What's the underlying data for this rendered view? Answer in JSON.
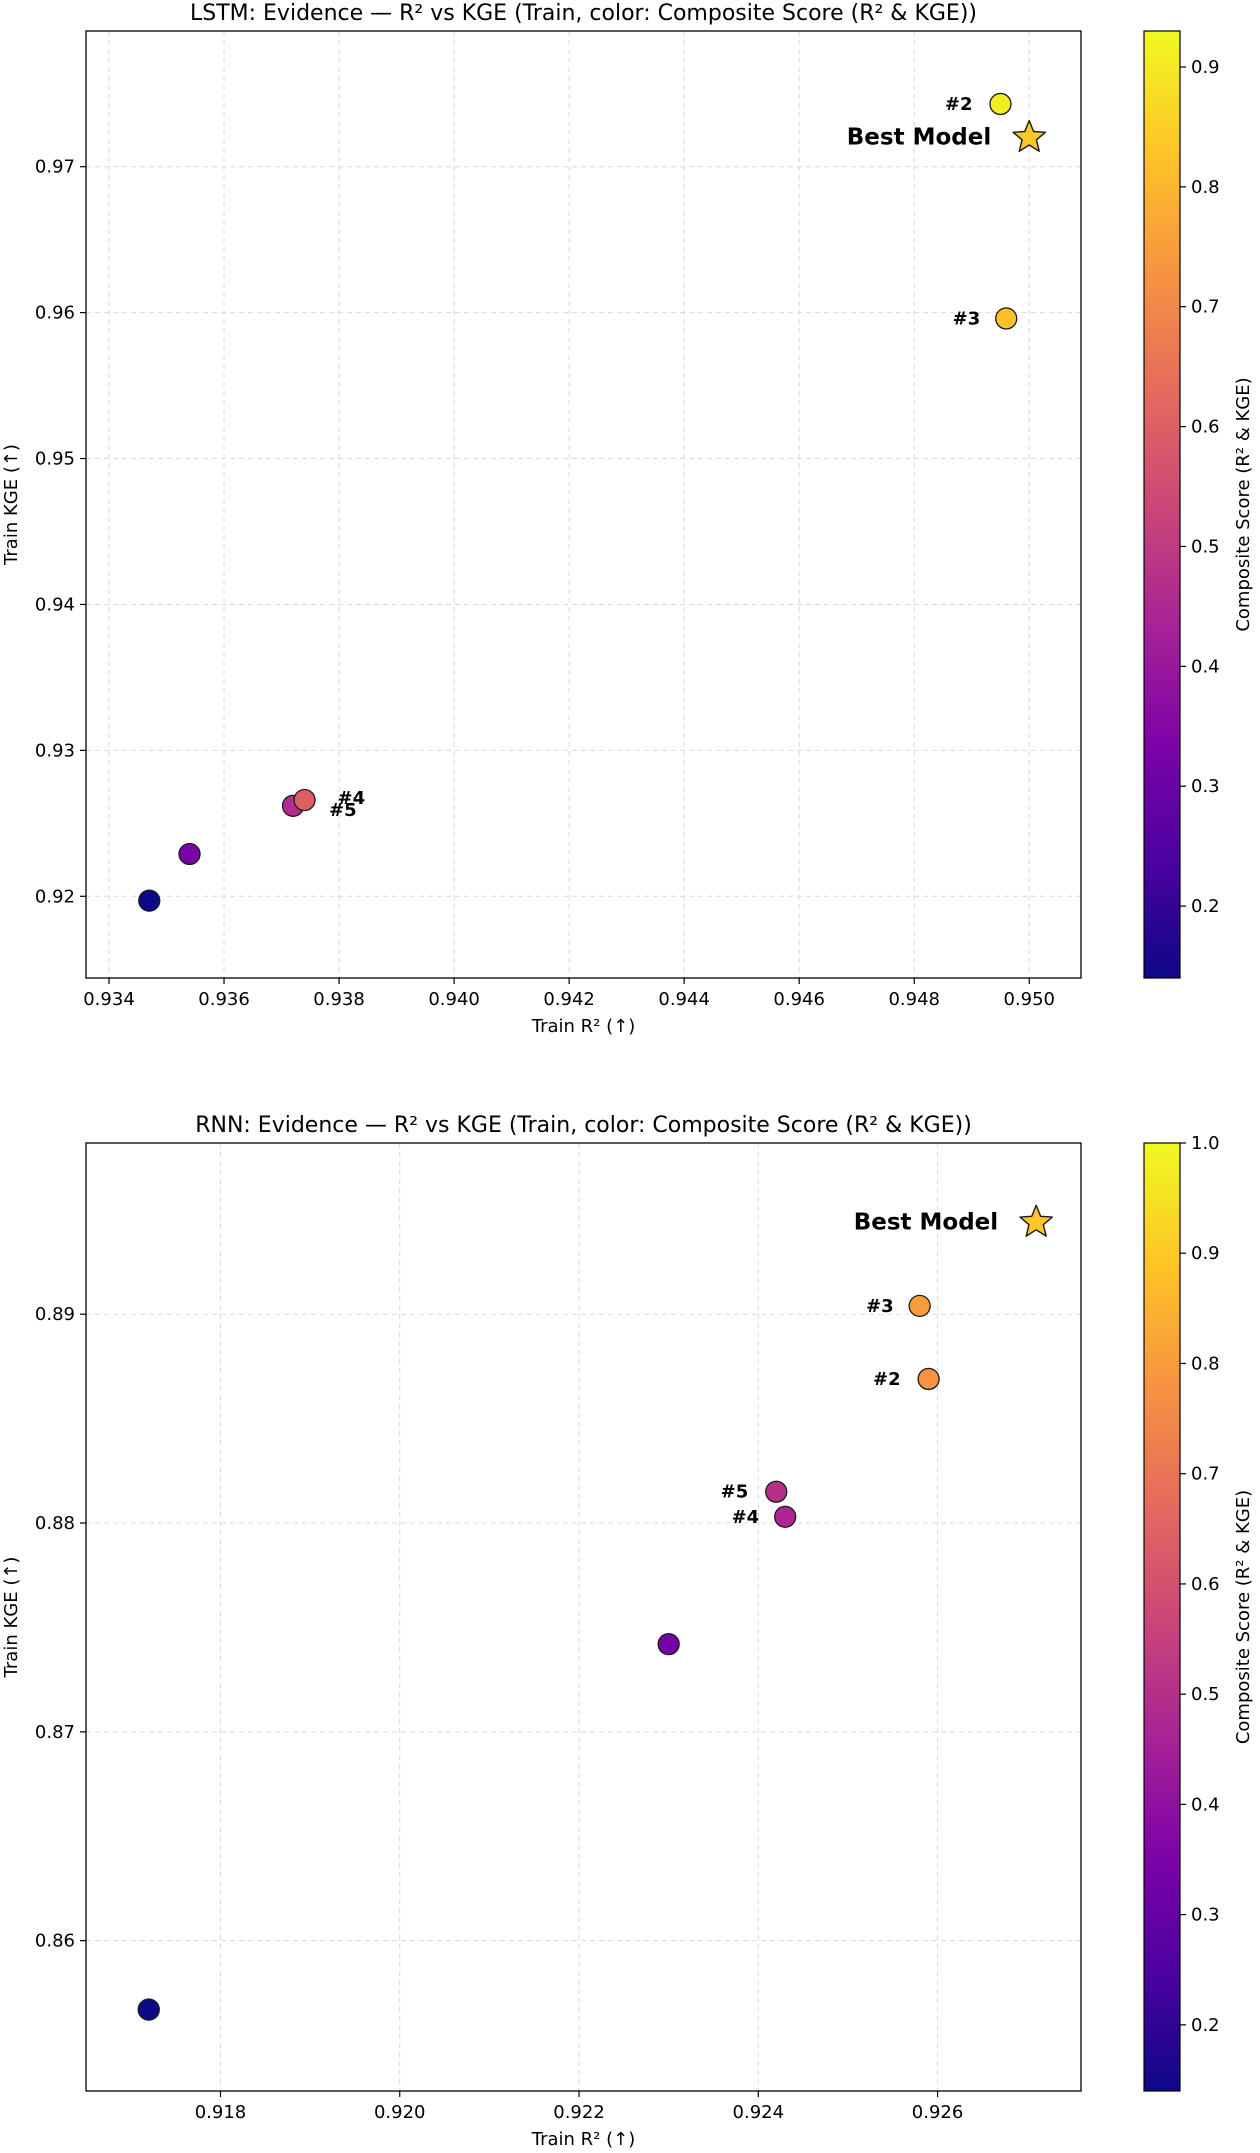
{
  "chart_data": [
    {
      "type": "scatter",
      "title": "LSTM: Evidence — R² vs KGE (Train, color: Composite Score (R² & KGE))",
      "xlabel": "Train R² (↑)",
      "ylabel": "Train KGE (↑)",
      "xlim": [
        0.9336,
        0.9509
      ],
      "ylim": [
        0.9144,
        0.9793
      ],
      "xticks": [
        0.934,
        0.936,
        0.938,
        0.94,
        0.942,
        0.944,
        0.946,
        0.948,
        0.95
      ],
      "xtick_labels": [
        "0.934",
        "0.936",
        "0.938",
        "0.940",
        "0.942",
        "0.944",
        "0.946",
        "0.948",
        "0.950"
      ],
      "yticks": [
        0.92,
        0.93,
        0.94,
        0.95,
        0.96,
        0.97
      ],
      "ytick_labels": [
        "0.92",
        "0.93",
        "0.94",
        "0.95",
        "0.96",
        "0.97"
      ],
      "grid": true,
      "colorbar": {
        "label": "Composite Score (R² & KGE)",
        "colormap": "plasma",
        "range": [
          0.14,
          0.93
        ],
        "ticks": [
          0.2,
          0.3,
          0.4,
          0.5,
          0.6,
          0.7,
          0.8,
          0.9
        ],
        "tick_labels": [
          "0.2",
          "0.3",
          "0.4",
          "0.5",
          "0.6",
          "0.7",
          "0.8",
          "0.9"
        ]
      },
      "points": [
        {
          "x": 0.9347,
          "y": 0.9197,
          "score": 0.14,
          "label": ""
        },
        {
          "x": 0.9354,
          "y": 0.9229,
          "score": 0.33,
          "label": ""
        },
        {
          "x": 0.9372,
          "y": 0.9262,
          "score": 0.46,
          "label": "#5"
        },
        {
          "x": 0.9374,
          "y": 0.9266,
          "score": 0.6,
          "label": "#4"
        },
        {
          "x": 0.9496,
          "y": 0.9596,
          "score": 0.82,
          "label": "#3"
        },
        {
          "x": 0.9495,
          "y": 0.9743,
          "score": 0.91,
          "label": "#2"
        }
      ],
      "best": {
        "x": 0.95,
        "y": 0.972,
        "score": 0.93,
        "label": "Best Model"
      }
    },
    {
      "type": "scatter",
      "title": "RNN: Evidence — R² vs KGE (Train, color: Composite Score (R² & KGE))",
      "xlabel": "Train R² (↑)",
      "ylabel": "Train KGE (↑)",
      "xlim": [
        0.9165,
        0.9276
      ],
      "ylim": [
        0.8528,
        0.8982
      ],
      "xticks": [
        0.918,
        0.92,
        0.922,
        0.924,
        0.926
      ],
      "xtick_labels": [
        "0.918",
        "0.920",
        "0.922",
        "0.924",
        "0.926"
      ],
      "yticks": [
        0.86,
        0.87,
        0.88,
        0.89
      ],
      "ytick_labels": [
        "0.86",
        "0.87",
        "0.88",
        "0.89"
      ],
      "grid": true,
      "colorbar": {
        "label": "Composite Score (R² & KGE)",
        "colormap": "plasma",
        "range": [
          0.14,
          1.0
        ],
        "ticks": [
          0.2,
          0.3,
          0.4,
          0.5,
          0.6,
          0.7,
          0.8,
          0.9,
          1.0
        ],
        "tick_labels": [
          "0.2",
          "0.3",
          "0.4",
          "0.5",
          "0.6",
          "0.7",
          "0.8",
          "0.9",
          "1.0"
        ]
      },
      "points": [
        {
          "x": 0.9172,
          "y": 0.8567,
          "score": 0.14,
          "label": ""
        },
        {
          "x": 0.923,
          "y": 0.8742,
          "score": 0.33,
          "label": ""
        },
        {
          "x": 0.9243,
          "y": 0.8803,
          "score": 0.47,
          "label": "#4"
        },
        {
          "x": 0.9242,
          "y": 0.8815,
          "score": 0.5,
          "label": "#5"
        },
        {
          "x": 0.9259,
          "y": 0.8869,
          "score": 0.78,
          "label": "#2"
        },
        {
          "x": 0.9258,
          "y": 0.8904,
          "score": 0.8,
          "label": "#3"
        }
      ],
      "best": {
        "x": 0.9271,
        "y": 0.8944,
        "score": 1.0,
        "label": "Best Model"
      }
    }
  ]
}
